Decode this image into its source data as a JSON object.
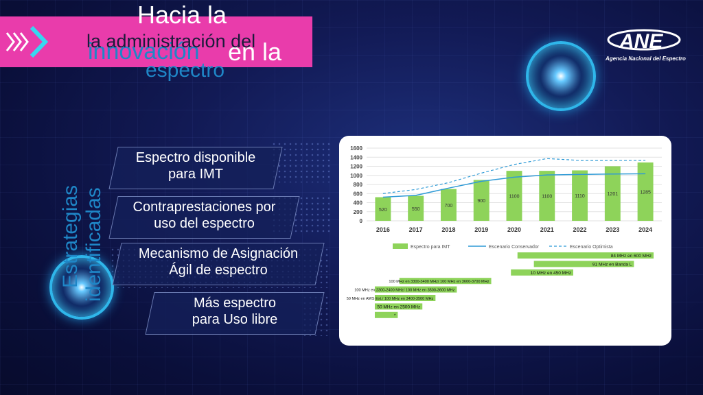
{
  "slide": {
    "title_line1": "Hacia la",
    "title_line2_blue": "innovación",
    "title_line2_white": "en la",
    "subtitle_dark": "la administración del",
    "subtitle_blue": "espectro",
    "vertical_line1": "Estrategias",
    "vertical_line2": "identificadas"
  },
  "logo": {
    "text": "ANE",
    "subtitle": "Agencia Nacional del Espectro"
  },
  "strategies": [
    {
      "line1": "Espectro disponible",
      "line2": "para IMT"
    },
    {
      "line1": "Contraprestaciones por",
      "line2": "uso del espectro"
    },
    {
      "line1": "Mecanismo de Asignación",
      "line2": "Ágil de espectro"
    },
    {
      "line1": "Más espectro",
      "line2": "para Uso libre"
    }
  ],
  "colors": {
    "magenta": "#e93cab",
    "blue_text": "#1f86c7",
    "bar_green": "#8ed35a",
    "dark_green": "#3e8a2c",
    "line_blue": "#2e9ad6"
  },
  "chart_data": {
    "type": "bar",
    "categories": [
      "2016",
      "2017",
      "2018",
      "2019",
      "2020",
      "2021",
      "2022",
      "2023",
      "2024"
    ],
    "ylim": [
      0,
      1600
    ],
    "yticks": [
      0,
      200,
      400,
      600,
      800,
      1000,
      1200,
      1400,
      1600
    ],
    "grid": true,
    "legend_position": "bottom",
    "series": [
      {
        "name": "Espectro para IMT",
        "kind": "bar",
        "values": [
          520,
          550,
          700,
          900,
          1100,
          1100,
          1110,
          1201,
          1285
        ]
      },
      {
        "name": "Escenario Conservador",
        "kind": "line",
        "values": [
          520,
          560,
          720,
          870,
          960,
          1010,
          1020,
          1030,
          1035
        ]
      },
      {
        "name": "Escenario Optimista",
        "kind": "dashed-line",
        "values": [
          600,
          690,
          840,
          1050,
          1240,
          1370,
          1330,
          1330,
          1335
        ]
      }
    ],
    "gantt": [
      {
        "label": "84 MHz en 600 MHz",
        "start": 2020.1,
        "end": 2024.25
      },
      {
        "label": "91 MHz en Banda L",
        "start": 2020.6,
        "end": 2023.65
      },
      {
        "label": "10 MHz en 450 MHz",
        "start": 2019.9,
        "end": 2021.8
      },
      {
        "label": "100 MHz en 3300-3400 MHz/ 100 MHz en 3600-3700 MHz",
        "start": 2016.5,
        "end": 2019.3
      },
      {
        "label": "100 MHz en 2300-2400 MHz/ 100 MHz en 3500-3600 MHz",
        "start": 2015.75,
        "end": 2018.25
      },
      {
        "label": "50 MHz en AWS Ext./ 100 MHz en 3400-3500 MHz",
        "start": 2015.75,
        "end": 2017.6
      },
      {
        "label": "50 MHz en 2500 MHz",
        "start": 2015.75,
        "end": 2017.2
      },
      {
        "label": "*",
        "start": 2015.75,
        "end": 2016.45
      }
    ]
  }
}
